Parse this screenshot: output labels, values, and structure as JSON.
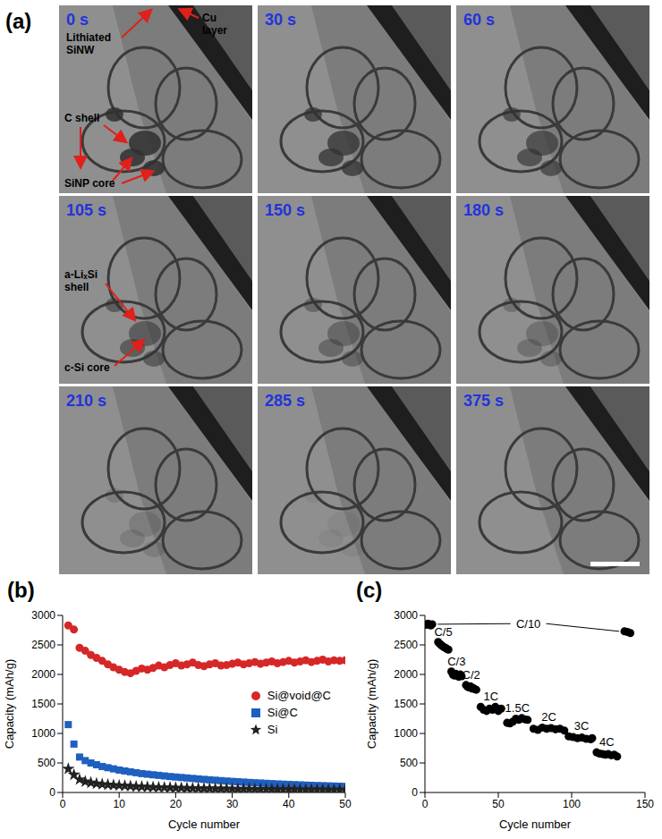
{
  "panel_a": {
    "panel": "(a)",
    "frames": [
      "0 s",
      "30 s",
      "60 s",
      "105 s",
      "150 s",
      "180 s",
      "210 s",
      "285 s",
      "375 s"
    ],
    "annotations": [
      {
        "frame": "0 s",
        "text": "Lithiated SiNW"
      },
      {
        "frame": "0 s",
        "text": "Cu layer"
      },
      {
        "frame": "0 s",
        "text": "C shell"
      },
      {
        "frame": "0 s",
        "text": "SiNP core"
      },
      {
        "frame": "105 s",
        "text": "a-LiₓSi shell"
      },
      {
        "frame": "105 s",
        "text": "c-Si core"
      }
    ]
  },
  "chart_data": [
    {
      "panel": "(b)",
      "type": "scatter",
      "x_label": "Cycle number",
      "y_label": "Capacity (mAh/g)",
      "x": [
        1,
        2,
        3,
        4,
        5,
        6,
        7,
        8,
        9,
        10,
        11,
        12,
        13,
        14,
        15,
        16,
        17,
        18,
        19,
        20,
        21,
        22,
        23,
        24,
        25,
        26,
        27,
        28,
        29,
        30,
        31,
        32,
        33,
        34,
        35,
        36,
        37,
        38,
        39,
        40,
        41,
        42,
        43,
        44,
        45,
        46,
        47,
        48,
        49,
        50
      ],
      "series": [
        {
          "name": "Si@void@C",
          "color": "#d62728",
          "marker": "circle",
          "values": [
            2830,
            2760,
            2450,
            2400,
            2330,
            2280,
            2230,
            2170,
            2120,
            2080,
            2040,
            2020,
            2060,
            2100,
            2080,
            2110,
            2150,
            2120,
            2160,
            2190,
            2150,
            2170,
            2200,
            2160,
            2140,
            2170,
            2190,
            2150,
            2160,
            2180,
            2200,
            2170,
            2190,
            2210,
            2180,
            2200,
            2220,
            2190,
            2210,
            2230,
            2200,
            2220,
            2240,
            2210,
            2230,
            2250,
            2220,
            2240,
            2230,
            2240
          ]
        },
        {
          "name": "Si@C",
          "color": "#1f5fbf",
          "marker": "square",
          "values": [
            1150,
            820,
            600,
            540,
            500,
            470,
            440,
            420,
            400,
            380,
            365,
            350,
            335,
            320,
            310,
            300,
            290,
            280,
            270,
            262,
            254,
            246,
            238,
            230,
            222,
            215,
            208,
            201,
            194,
            188,
            182,
            176,
            170,
            165,
            160,
            155,
            150,
            145,
            141,
            137,
            133,
            129,
            125,
            121,
            118,
            115,
            112,
            109,
            106,
            103
          ]
        },
        {
          "name": "Si",
          "color": "#222222",
          "marker": "star",
          "values": [
            400,
            300,
            220,
            185,
            165,
            150,
            140,
            132,
            125,
            118,
            112,
            107,
            102,
            98,
            94,
            90,
            87,
            84,
            81,
            78,
            76,
            74,
            72,
            70,
            68,
            66,
            64,
            63,
            62,
            61,
            60,
            59,
            58,
            57,
            56,
            55,
            54,
            53,
            52,
            51,
            50,
            49,
            48,
            48,
            47,
            47,
            46,
            46,
            45,
            45
          ]
        }
      ],
      "xlim": [
        0,
        50
      ],
      "xticks": [
        0,
        10,
        20,
        30,
        40,
        50
      ],
      "ylim": [
        0,
        3000
      ],
      "yticks": [
        0,
        500,
        1000,
        1500,
        2000,
        2500,
        3000
      ],
      "legend": "right",
      "grid": false
    },
    {
      "panel": "(c)",
      "type": "scatter",
      "x_label": "Cycle number",
      "y_label": "Capacity (mAh/g)",
      "series": [
        {
          "name": "C/10",
          "color": "#000000",
          "marker": "circle",
          "x": [
            1,
            2,
            3,
            4,
            5
          ],
          "values": [
            2840,
            2860,
            2850,
            2830,
            2850
          ]
        },
        {
          "name": "C/5",
          "color": "#000000",
          "marker": "circle",
          "x": [
            9,
            10,
            11,
            12,
            13,
            14,
            15,
            16
          ],
          "values": [
            2550,
            2520,
            2500,
            2480,
            2460,
            2450,
            2430,
            2420
          ]
        },
        {
          "name": "C/3",
          "color": "#000000",
          "marker": "circle",
          "x": [
            18,
            19,
            20,
            21,
            22,
            23,
            24,
            25
          ],
          "values": [
            2050,
            2000,
            1980,
            2010,
            1990,
            1960,
            2000,
            1970
          ]
        },
        {
          "name": "C/2",
          "color": "#000000",
          "marker": "circle",
          "x": [
            28,
            29,
            30,
            31,
            32,
            33,
            34,
            35
          ],
          "values": [
            1820,
            1790,
            1780,
            1800,
            1760,
            1770,
            1750,
            1740
          ]
        },
        {
          "name": "1C",
          "color": "#000000",
          "marker": "circle",
          "x": [
            38,
            40,
            42,
            44,
            46,
            48,
            50,
            52
          ],
          "values": [
            1450,
            1400,
            1380,
            1420,
            1400,
            1450,
            1380,
            1420
          ]
        },
        {
          "name": "1.5C",
          "color": "#000000",
          "marker": "circle",
          "x": [
            56,
            58,
            60,
            62,
            64,
            66,
            68,
            70
          ],
          "values": [
            1180,
            1170,
            1200,
            1250,
            1230,
            1260,
            1240,
            1230
          ]
        },
        {
          "name": "2C",
          "color": "#000000",
          "marker": "circle",
          "x": [
            74,
            77,
            80,
            83,
            86,
            89,
            92,
            95
          ],
          "values": [
            1080,
            1060,
            1100,
            1080,
            1090,
            1070,
            1080,
            1050
          ]
        },
        {
          "name": "3C",
          "color": "#000000",
          "marker": "circle",
          "x": [
            98,
            101,
            104,
            107,
            110,
            113,
            114
          ],
          "values": [
            950,
            940,
            920,
            930,
            910,
            900,
            920
          ]
        },
        {
          "name": "4C",
          "color": "#000000",
          "marker": "circle",
          "x": [
            117,
            119,
            121,
            123,
            125,
            127,
            129,
            131
          ],
          "values": [
            680,
            660,
            650,
            640,
            650,
            630,
            640,
            610
          ]
        },
        {
          "name": "C/10",
          "color": "#000000",
          "marker": "circle",
          "x": [
            136,
            138,
            140
          ],
          "values": [
            2730,
            2720,
            2700
          ]
        }
      ],
      "xlim": [
        0,
        150
      ],
      "xticks": [
        0,
        50,
        100,
        150
      ],
      "ylim": [
        0,
        3000
      ],
      "yticks": [
        0,
        500,
        1000,
        1500,
        2000,
        2500,
        3000
      ],
      "grid": false
    }
  ]
}
